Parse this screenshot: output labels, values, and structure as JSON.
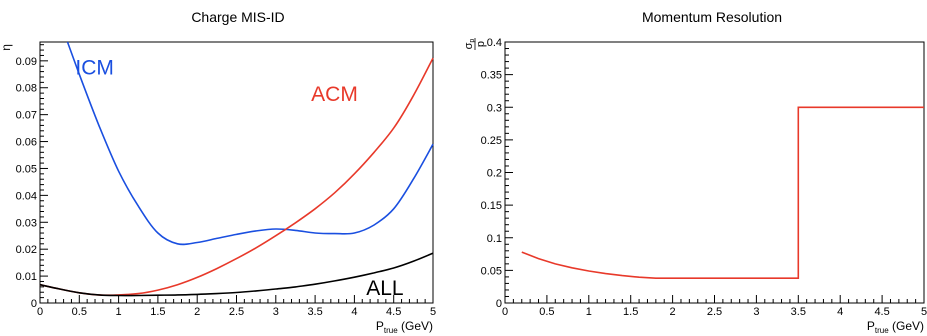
{
  "chart_data": [
    {
      "type": "line",
      "title": "Charge MIS-ID",
      "xlabel_main": "P",
      "xlabel_sub": "true",
      "xlabel_unit": " (GeV)",
      "ylabel": "η",
      "xlim": [
        0,
        5
      ],
      "ylim": [
        0,
        0.097
      ],
      "x_ticks": [
        "0",
        "0.5",
        "1",
        "1.5",
        "2",
        "2.5",
        "3",
        "3.5",
        "4",
        "4.5",
        "5"
      ],
      "y_ticks": [
        "0",
        "0.01",
        "0.02",
        "0.03",
        "0.04",
        "0.05",
        "0.06",
        "0.07",
        "0.08",
        "0.09"
      ],
      "x_tick_values": [
        0,
        0.5,
        1,
        1.5,
        2,
        2.5,
        3,
        3.5,
        4,
        4.5,
        5
      ],
      "y_tick_values": [
        0,
        0.01,
        0.02,
        0.03,
        0.04,
        0.05,
        0.06,
        0.07,
        0.08,
        0.09
      ],
      "grid": false,
      "series": [
        {
          "name": "ICM",
          "color": "#1a4fe0",
          "x": [
            0.35,
            0.5,
            0.75,
            1.0,
            1.25,
            1.5,
            1.75,
            2.0,
            2.25,
            2.5,
            2.75,
            3.0,
            3.25,
            3.5,
            3.75,
            4.0,
            4.25,
            4.5,
            4.75,
            5.0
          ],
          "y": [
            0.097,
            0.085,
            0.066,
            0.049,
            0.036,
            0.026,
            0.022,
            0.0225,
            0.024,
            0.0255,
            0.0268,
            0.0275,
            0.027,
            0.026,
            0.0258,
            0.026,
            0.029,
            0.035,
            0.046,
            0.059
          ],
          "label_x": 0.45,
          "label_y": 0.085
        },
        {
          "name": "ACM",
          "color": "#e8392a",
          "x": [
            0,
            0.25,
            0.5,
            0.75,
            1.0,
            1.25,
            1.5,
            1.75,
            2.0,
            2.25,
            2.5,
            2.75,
            3.0,
            3.25,
            3.5,
            3.75,
            4.0,
            4.25,
            4.5,
            4.75,
            5.0
          ],
          "y": [
            0.0068,
            0.0052,
            0.0038,
            0.003,
            0.003,
            0.0035,
            0.0048,
            0.0068,
            0.0095,
            0.0128,
            0.0165,
            0.0205,
            0.025,
            0.0298,
            0.035,
            0.041,
            0.048,
            0.056,
            0.065,
            0.077,
            0.091
          ],
          "label_x": 3.45,
          "label_y": 0.075
        },
        {
          "name": "ALL",
          "color": "#000000",
          "x": [
            0,
            0.25,
            0.5,
            0.75,
            1.0,
            1.25,
            1.5,
            1.75,
            2.0,
            2.25,
            2.5,
            2.75,
            3.0,
            3.25,
            3.5,
            3.75,
            4.0,
            4.25,
            4.5,
            4.75,
            5.0
          ],
          "y": [
            0.0068,
            0.0052,
            0.0038,
            0.003,
            0.0028,
            0.0028,
            0.0029,
            0.003,
            0.0032,
            0.0035,
            0.0039,
            0.0045,
            0.0052,
            0.006,
            0.007,
            0.0082,
            0.0096,
            0.0112,
            0.013,
            0.0155,
            0.0185
          ],
          "label_x": 4.15,
          "label_y": 0.003
        }
      ]
    },
    {
      "type": "line",
      "title": "Momentum Resolution",
      "xlabel_main": "P",
      "xlabel_sub": "true",
      "xlabel_unit": " (GeV)",
      "ylabel_num": "σ",
      "ylabel_num_sub": "p",
      "ylabel_den": "p",
      "xlim": [
        0,
        5
      ],
      "ylim": [
        0,
        0.4
      ],
      "x_ticks": [
        "0",
        "0.5",
        "1",
        "1.5",
        "2",
        "2.5",
        "3",
        "3.5",
        "4",
        "4.5",
        "5"
      ],
      "y_ticks": [
        "0",
        "0.05",
        "0.1",
        "0.15",
        "0.2",
        "0.25",
        "0.3",
        "0.35",
        "0.4"
      ],
      "x_tick_values": [
        0,
        0.5,
        1,
        1.5,
        2,
        2.5,
        3,
        3.5,
        4,
        4.5,
        5
      ],
      "y_tick_values": [
        0,
        0.05,
        0.1,
        0.15,
        0.2,
        0.25,
        0.3,
        0.35,
        0.4
      ],
      "grid": false,
      "series": [
        {
          "color": "#e8392a",
          "x": [
            0.2,
            0.4,
            0.6,
            0.8,
            1.0,
            1.2,
            1.4,
            1.6,
            1.8,
            2.0,
            3.5,
            3.5,
            5.0
          ],
          "y": [
            0.078,
            0.068,
            0.06,
            0.054,
            0.049,
            0.045,
            0.042,
            0.0395,
            0.038,
            0.038,
            0.038,
            0.3,
            0.3
          ]
        }
      ]
    }
  ]
}
